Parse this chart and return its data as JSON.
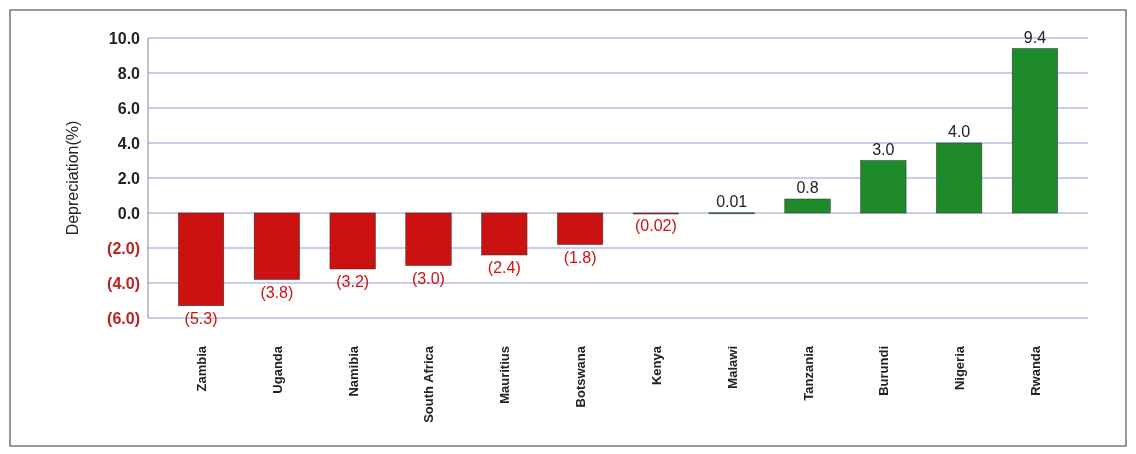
{
  "chart_data": {
    "type": "bar",
    "ylabel": "Depreciation(%)",
    "categories": [
      "Zambia",
      "Uganda",
      "Namibia",
      "South Africa",
      "Mauritius",
      "Botswana",
      "Kenya",
      "Malawi",
      "Tanzania",
      "Burundi",
      "Nigeria",
      "Rwanda"
    ],
    "values": [
      -5.3,
      -3.8,
      -3.2,
      -3.0,
      -2.4,
      -1.8,
      -0.02,
      0.01,
      0.8,
      3.0,
      4.0,
      9.4
    ],
    "colors": [
      "#cc1111",
      "#cc1111",
      "#cc1111",
      "#cc1111",
      "#cc1111",
      "#cc1111",
      "#cc1111",
      "#1f8a2a",
      "#1f8a2a",
      "#1f8a2a",
      "#1f8a2a",
      "#1f8a2a"
    ],
    "value_labels": [
      "(5.3)",
      "(3.8)",
      "(3.2)",
      "(3.0)",
      "(2.4)",
      "(1.8)",
      "(0.02)",
      "0.01",
      "0.8",
      "3.0",
      "4.0",
      "9.4"
    ],
    "ylim": [
      -6,
      10
    ],
    "yticks": [
      {
        "value": -6,
        "label": "(6.0)"
      },
      {
        "value": -4,
        "label": "(4.0)"
      },
      {
        "value": -2,
        "label": "(2.0)"
      },
      {
        "value": 0,
        "label": "0.0"
      },
      {
        "value": 2,
        "label": "2.0"
      },
      {
        "value": 4,
        "label": "4.0"
      },
      {
        "value": 6,
        "label": "6.0"
      },
      {
        "value": 8,
        "label": "8.0"
      },
      {
        "value": 10,
        "label": "10.0"
      }
    ],
    "grid": "y"
  }
}
